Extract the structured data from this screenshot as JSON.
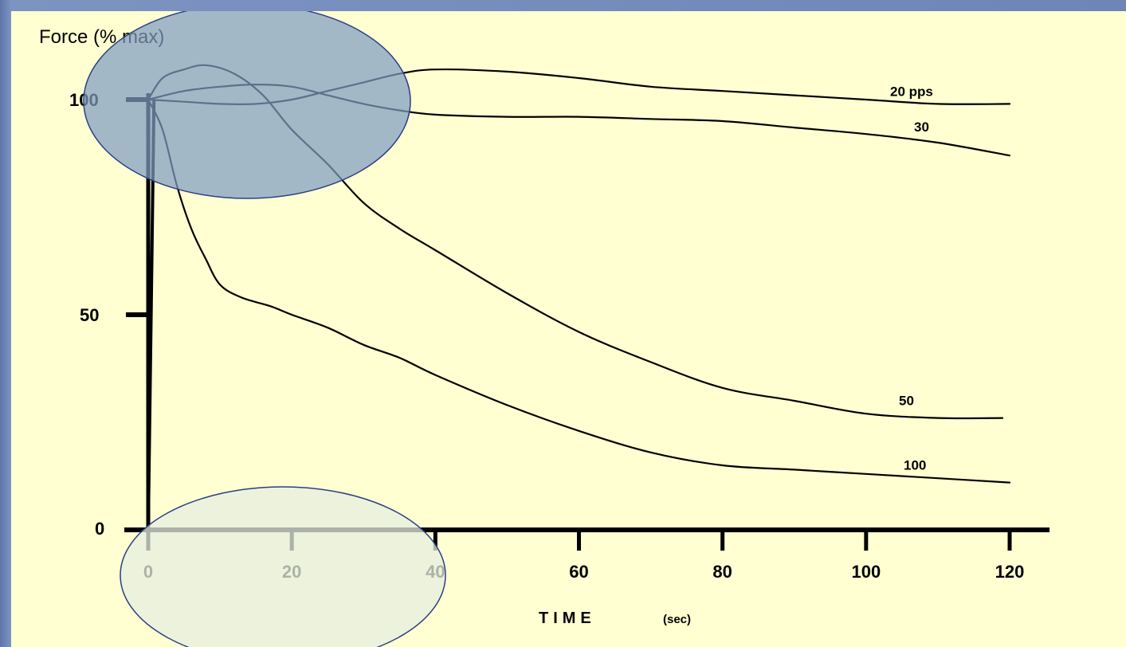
{
  "chart_data": {
    "type": "line",
    "ylabel": "Force (% max)",
    "xlabel": "TIME",
    "xlabel_unit": "(sec)",
    "xlim": [
      0,
      120
    ],
    "ylim": [
      0,
      100
    ],
    "x_ticks": [
      "0",
      "20",
      "40",
      "60",
      "80",
      "100",
      "120"
    ],
    "y_ticks": [
      "0",
      "50",
      "100"
    ],
    "grid": false,
    "series": [
      {
        "name": "20 pps",
        "x": [
          0,
          5,
          10,
          15,
          20,
          25,
          30,
          35,
          40,
          50,
          60,
          70,
          80,
          90,
          100,
          110,
          120
        ],
        "y": [
          100,
          99.5,
          99,
          99,
          100,
          102,
          104,
          106,
          107,
          106.5,
          105,
          103,
          102,
          101,
          100,
          99,
          99
        ]
      },
      {
        "name": "30",
        "x": [
          0,
          5,
          10,
          15,
          20,
          25,
          30,
          35,
          40,
          50,
          60,
          70,
          80,
          90,
          100,
          110,
          120
        ],
        "y": [
          100,
          102,
          103,
          103.5,
          103,
          101,
          99,
          97.5,
          96.5,
          96,
          96,
          95.5,
          95,
          93.5,
          92,
          90,
          87
        ]
      },
      {
        "name": "50",
        "x": [
          0,
          2,
          5,
          8,
          12,
          16,
          20,
          25,
          30,
          35,
          40,
          50,
          60,
          70,
          80,
          90,
          100,
          110,
          119
        ],
        "y": [
          100,
          105,
          107,
          108,
          106,
          101,
          93,
          85,
          76,
          70,
          65,
          55,
          46,
          39,
          33,
          30,
          27,
          26,
          26
        ]
      },
      {
        "name": "100",
        "x": [
          0,
          2,
          4,
          6,
          8,
          10,
          13,
          17,
          20,
          25,
          30,
          35,
          40,
          50,
          60,
          70,
          80,
          90,
          100,
          110,
          120
        ],
        "y": [
          100,
          93,
          80,
          70,
          63,
          57,
          54,
          52,
          50,
          47,
          43,
          40,
          36,
          29,
          23,
          18,
          15,
          14,
          13,
          12,
          11
        ]
      }
    ],
    "annotations": [
      "highlight ellipse near y=100 start",
      "highlight ellipse over x axis 0-40"
    ]
  },
  "colors": {
    "background": "#ffffd2",
    "frame": "#6e85b8",
    "line": "#000000",
    "highlight_top": "#7f9cc0",
    "highlight_bottom": "#e6eedf",
    "ellipse_stroke": "#2a3f84"
  }
}
